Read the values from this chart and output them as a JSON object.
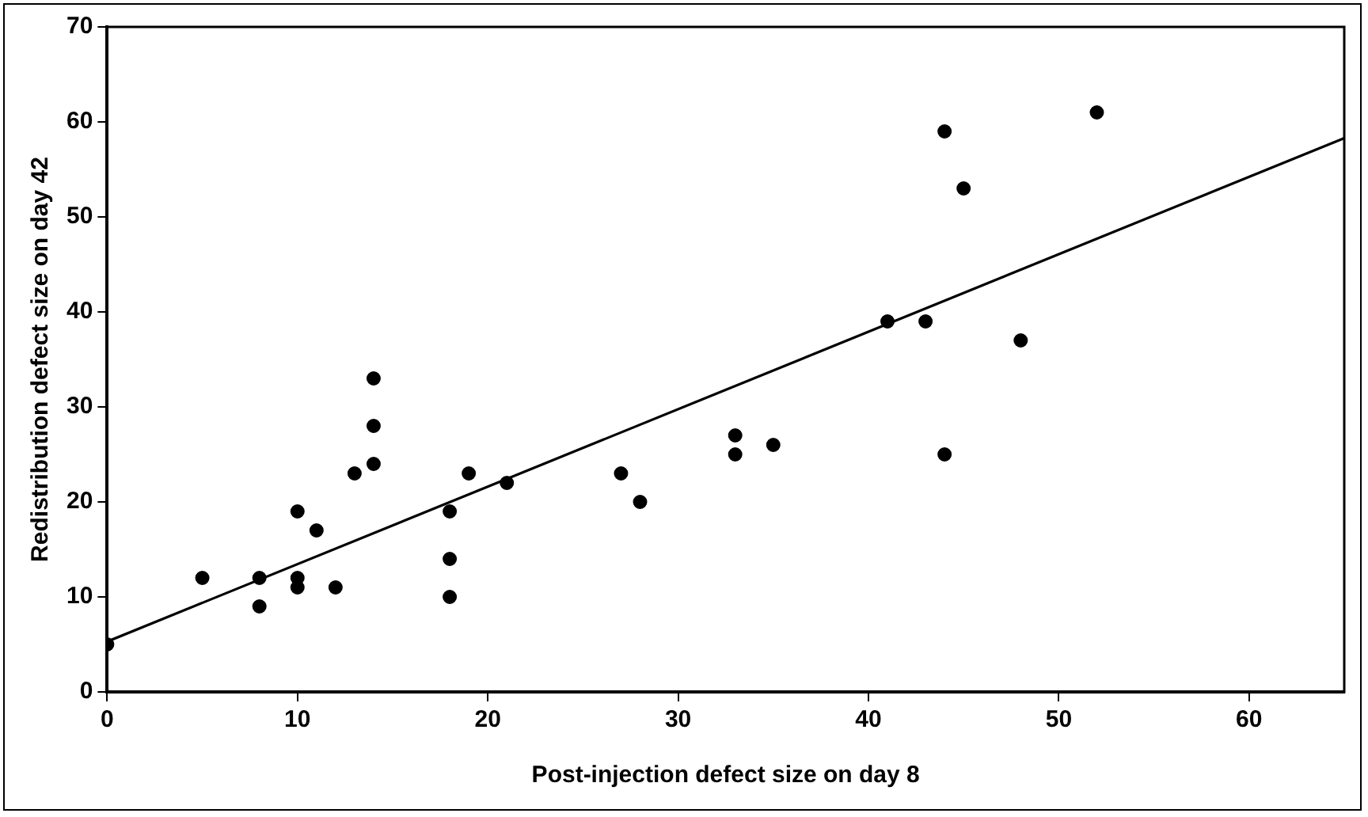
{
  "chart_data": {
    "type": "scatter",
    "xlabel": "Post-injection defect size on day 8",
    "ylabel": "Redistribution defect size on day 42",
    "xlim": [
      0,
      65
    ],
    "xticks": [
      0,
      10,
      20,
      30,
      40,
      50,
      60
    ],
    "ylim": [
      0,
      70
    ],
    "yticks": [
      0,
      10,
      20,
      30,
      40,
      50,
      60,
      70
    ],
    "grid": false,
    "legend": false,
    "marker": "circle",
    "series": [
      {
        "color": "#000000",
        "x": [
          0,
          5,
          8,
          8,
          10,
          10,
          10,
          11,
          12,
          13,
          14,
          14,
          14,
          18,
          18,
          18,
          19,
          21,
          27,
          28,
          33,
          33,
          35,
          41,
          43,
          44,
          44,
          45,
          48,
          52
        ],
        "values": [
          5,
          12,
          12,
          9,
          19,
          12,
          11,
          17,
          11,
          23,
          33,
          28,
          24,
          19,
          14,
          10,
          23,
          22,
          23,
          20,
          27,
          25,
          26,
          39,
          39,
          59,
          25,
          53,
          37,
          61
        ]
      },
      {
        "type": "line",
        "color": "#000000",
        "marker": "none",
        "x": [
          0,
          65
        ],
        "values": [
          5.3,
          58.3
        ]
      }
    ]
  }
}
